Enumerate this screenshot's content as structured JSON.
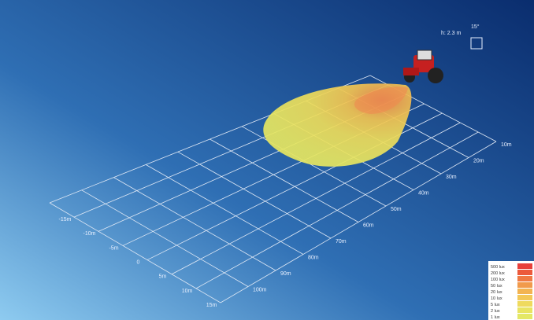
{
  "mount": {
    "height": "h: 2.3 m",
    "angle": "15°"
  },
  "side_axis": [
    "-15m",
    "-10m",
    "-5m",
    "0",
    "5m",
    "10m",
    "15m"
  ],
  "range_axis": [
    "10m",
    "20m",
    "30m",
    "40m",
    "50m",
    "60m",
    "70m",
    "80m",
    "90m",
    "100m"
  ],
  "legend": [
    "500 lux",
    "200 lux",
    "100 lux",
    "50 lux",
    "20 lux",
    "10 lux",
    "5 lux",
    "2 lux",
    "1 lux"
  ]
}
